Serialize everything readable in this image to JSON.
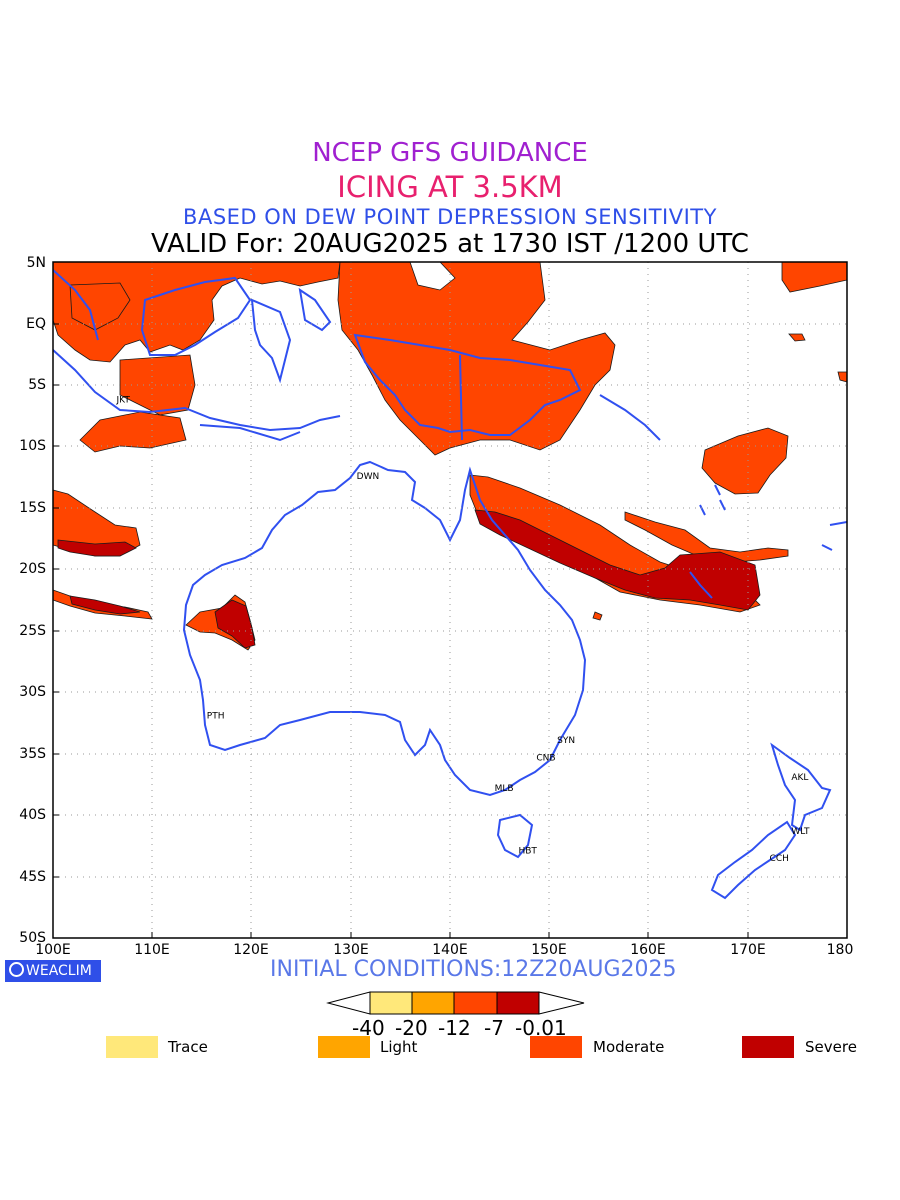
{
  "header": {
    "line1": "NCEP GFS GUIDANCE",
    "line2": "ICING AT 3.5KM",
    "line3": "BASED ON DEW POINT DEPRESSION SENSITIVITY",
    "line4": "VALID For: 20AUG2025 at 1730 IST /1200 UTC"
  },
  "axes": {
    "lat_labels": [
      "5N",
      "EQ",
      "5S",
      "10S",
      "15S",
      "20S",
      "25S",
      "30S",
      "35S",
      "40S",
      "45S",
      "50S"
    ],
    "lon_labels": [
      "100E",
      "110E",
      "120E",
      "130E",
      "140E",
      "150E",
      "160E",
      "170E",
      "180"
    ]
  },
  "cities": [
    {
      "code": "DWN",
      "lon": 131.0,
      "lat": -12.4
    },
    {
      "code": "PTH",
      "lon": 115.9,
      "lat": -31.9
    },
    {
      "code": "SYN",
      "lon": 151.2,
      "lat": -33.9
    },
    {
      "code": "CNB",
      "lon": 149.1,
      "lat": -35.3
    },
    {
      "code": "MLB",
      "lon": 144.9,
      "lat": -37.8
    },
    {
      "code": "HBT",
      "lon": 147.3,
      "lat": -42.9
    },
    {
      "code": "AKL",
      "lon": 174.8,
      "lat": -36.9
    },
    {
      "code": "WLT",
      "lon": 174.8,
      "lat": -41.3
    },
    {
      "code": "CCH",
      "lon": 172.6,
      "lat": -43.5
    },
    {
      "code": "JKT",
      "lon": 106.8,
      "lat": -6.2
    }
  ],
  "footer": {
    "logo": "WEACLIM",
    "initial_conditions": "INITIAL CONDITIONS:12Z20AUG2025"
  },
  "colorbar": {
    "levels": [
      "-40",
      "-20",
      "-12",
      "-7",
      "-0.01"
    ],
    "colors": [
      "#ffe87a",
      "#ffa500",
      "#ff4500",
      "#c00000"
    ]
  },
  "legend": [
    {
      "label": "Trace",
      "color": "#ffe87a"
    },
    {
      "label": "Light",
      "color": "#ffa500"
    },
    {
      "label": "Moderate",
      "color": "#ff4500"
    },
    {
      "label": "Severe",
      "color": "#c00000"
    }
  ],
  "colors": {
    "coast": "#3050f0",
    "moderate": "#ff4500",
    "severe": "#c00000"
  }
}
